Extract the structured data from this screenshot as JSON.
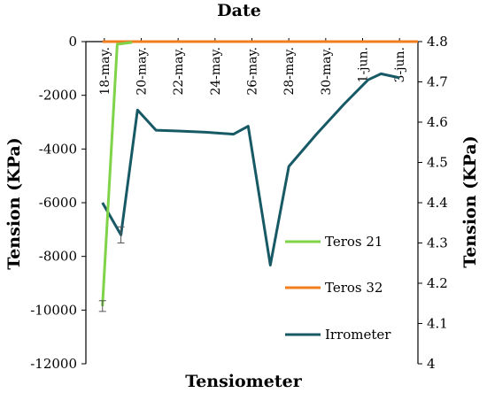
{
  "chart_data": {
    "type": "line",
    "title": "Date",
    "xlabel": "Tensiometer",
    "ylabel_left": "Tension (KPa)",
    "ylabel_right": "Tension (KPa)",
    "ylim_left": [
      -12000,
      0
    ],
    "yticks_left": [
      0,
      -2000,
      -4000,
      -6000,
      -8000,
      -10000,
      -12000
    ],
    "ytick_labels_left": [
      "0",
      "-2000",
      "-4000",
      "-6000",
      "-8000",
      "-10000",
      "-12000"
    ],
    "ylim_right": [
      4,
      4.8
    ],
    "yticks_right": [
      4.8,
      4.7,
      4.6,
      4.5,
      4.4,
      4.3,
      4.2,
      4.1,
      4
    ],
    "ytick_labels_right": [
      "4.8",
      "4.7",
      "4.6",
      "4.5",
      "4.4",
      "4.3",
      "4.2",
      "4.1",
      "4"
    ],
    "xlim": [
      17,
      35
    ],
    "x_ticks": [
      18,
      20,
      22,
      24,
      26,
      28,
      30,
      32,
      34
    ],
    "x_tick_labels": [
      "18-may.",
      "20-may.",
      "22-may.",
      "24-may.",
      "26-may.",
      "28-may.",
      "30-may.",
      "1-jun.",
      "3-jun."
    ],
    "legend_position": "right",
    "grid": false,
    "series": [
      {
        "name": "Teros 21",
        "axis": "left",
        "color": "#7ed348",
        "x": [
          17.9,
          18.7,
          19.5
        ],
        "y": [
          -9850,
          -100,
          -30
        ],
        "error_y": [
          200,
          0,
          0
        ]
      },
      {
        "name": "Teros 32",
        "axis": "left",
        "color": "#f07d1e",
        "x": [
          17.9,
          35
        ],
        "y": [
          0,
          0
        ]
      },
      {
        "name": "Irrometer",
        "axis": "right",
        "color": "#185966",
        "x": [
          17.9,
          18.9,
          19.8,
          20.8,
          22,
          23.5,
          25,
          25.8,
          27,
          28,
          29.5,
          31,
          32.3,
          33,
          34
        ],
        "y": [
          4.4,
          4.32,
          4.63,
          4.58,
          4.578,
          4.575,
          4.57,
          4.59,
          4.245,
          4.49,
          4.57,
          4.645,
          4.705,
          4.72,
          4.71
        ],
        "error_y": [
          0,
          0.02,
          0,
          0,
          0,
          0,
          0,
          0,
          0,
          0,
          0,
          0,
          0,
          0,
          0
        ]
      }
    ]
  }
}
